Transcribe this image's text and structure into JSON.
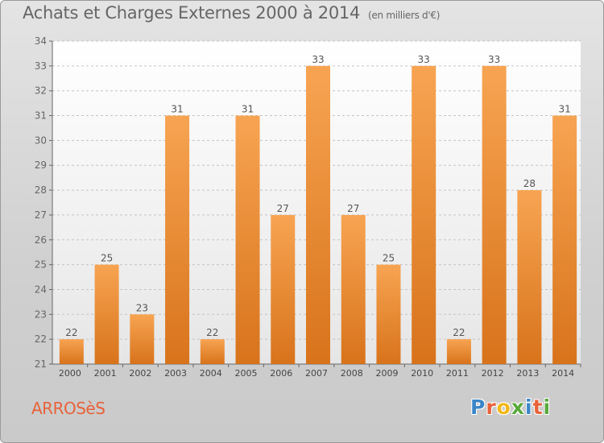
{
  "header": {
    "title": "Achats et Charges Externes 2000 à 2014",
    "subtitle": "(en milliers d'€)"
  },
  "footer": {
    "commune": "ARROSèS",
    "logo": "Proxiti",
    "logo_colors": [
      "#3a86c8",
      "#e8623a",
      "#f2b818",
      "#59a93b",
      "#3a86c8",
      "#e8623a",
      "#59a93b"
    ]
  },
  "colors": {
    "bar_top": "#f7a452",
    "bar_bottom": "#d8731b",
    "label": "#555555",
    "axis": "#666666"
  },
  "chart_data": {
    "type": "bar",
    "title": "Achats et Charges Externes 2000 à 2014",
    "subtitle": "(en milliers d'€)",
    "categories": [
      "2000",
      "2001",
      "2002",
      "2003",
      "2004",
      "2005",
      "2006",
      "2007",
      "2008",
      "2009",
      "2010",
      "2011",
      "2012",
      "2013",
      "2014"
    ],
    "values": [
      22,
      25,
      23,
      31,
      22,
      31,
      27,
      33,
      27,
      25,
      33,
      22,
      33,
      28,
      31
    ],
    "ylim": [
      21,
      34
    ],
    "yticks": [
      21,
      22,
      23,
      24,
      25,
      26,
      27,
      28,
      29,
      30,
      31,
      32,
      33,
      34
    ],
    "grid": true,
    "xlabel": "",
    "ylabel": ""
  }
}
